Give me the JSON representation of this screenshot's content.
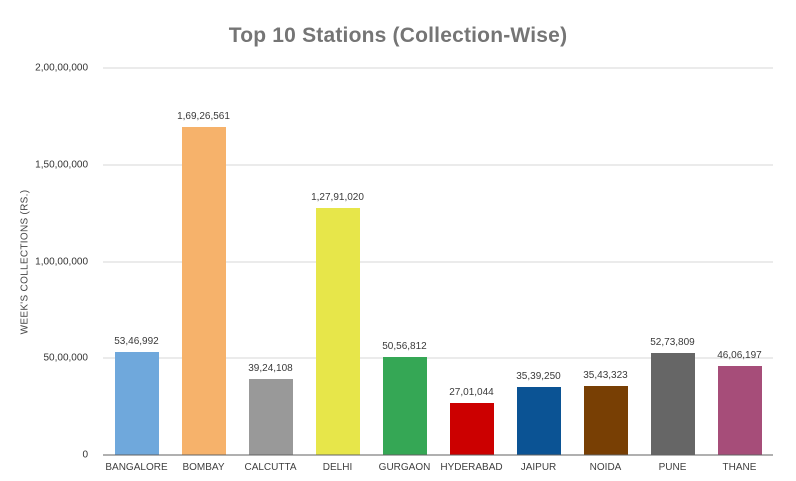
{
  "chart_data": {
    "type": "bar",
    "title": "Top 10 Stations (Collection-Wise)",
    "xlabel": "",
    "ylabel": "WEEK'S COLLECTIONS (RS.)",
    "categories": [
      "BANGALORE",
      "BOMBAY",
      "CALCUTTA",
      "DELHI",
      "GURGAON",
      "HYDERABAD",
      "JAIPUR",
      "NOIDA",
      "PUNE",
      "THANE"
    ],
    "values": [
      5346992,
      16926561,
      3924108,
      12791020,
      5056812,
      2701044,
      3539250,
      3543323,
      5273809,
      4606197
    ],
    "value_labels": [
      "53,46,992",
      "1,69,26,561",
      "39,24,108",
      "1,27,91,020",
      "50,56,812",
      "27,01,044",
      "35,39,250",
      "35,43,323",
      "52,73,809",
      "46,06,197"
    ],
    "bar_colors": [
      "#6FA8DC",
      "#F6B26B",
      "#999999",
      "#E7E64A",
      "#35A755",
      "#CC0000",
      "#0B5394",
      "#783F04",
      "#666666",
      "#A64D79"
    ],
    "ylim": [
      0,
      20000000
    ],
    "y_ticks_top_to_bottom": [
      "2,00,00,000",
      "1,50,00,000",
      "1,00,00,000",
      "50,00,000",
      "0"
    ],
    "grid": true,
    "legend": "none"
  },
  "colors": {
    "title": "#757575",
    "gridline": "#ebebeb",
    "axis_line": "#616161",
    "label_text": "#3a3a3a",
    "background": "#ffffff"
  }
}
